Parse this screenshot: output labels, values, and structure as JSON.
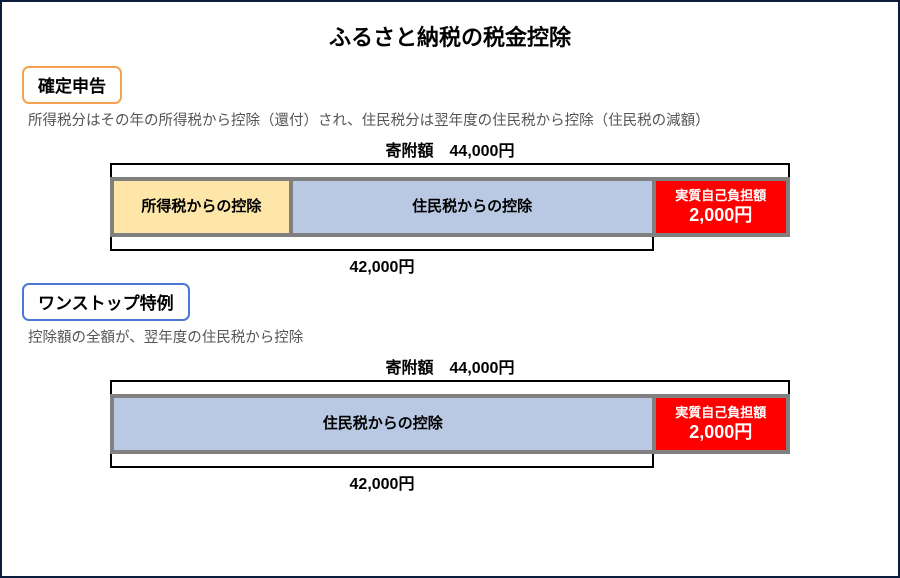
{
  "title": "ふるさと納税の税金控除",
  "colors": {
    "frame": "#0a1d3d",
    "bar_border": "#808080",
    "seg_yellow": "#fde6a8",
    "seg_blue": "#b9c9e3",
    "seg_red": "#ff0000",
    "text_black": "#000000",
    "text_white": "#ffffff",
    "text_gray": "#555555",
    "tag_orange": "#f5a34e",
    "tag_blue": "#4a78d4"
  },
  "section1": {
    "tag": "確定申告",
    "desc": "所得税分はその年の所得税から控除（還付）され、住民税分は翌年度の住民税から控除（住民税の減額）",
    "top_label": "寄附額　44,000円",
    "bottom_label": "42,000円",
    "bottom_width_pct": 80,
    "segments": [
      {
        "label1": "所得税からの控除",
        "bg": "#fde6a8",
        "fg": "#000000",
        "width_pct": 26
      },
      {
        "label1": "住民税からの控除",
        "bg": "#b9c9e3",
        "fg": "#000000",
        "width_pct": 54
      },
      {
        "label1": "実質自己負担額",
        "label2": "2,000円",
        "bg": "#ff0000",
        "fg": "#ffffff",
        "width_pct": 20,
        "small": true
      }
    ]
  },
  "section2": {
    "tag": "ワンストップ特例",
    "desc": "控除額の全額が、翌年度の住民税から控除",
    "top_label": "寄附額　44,000円",
    "bottom_label": "42,000円",
    "bottom_width_pct": 80,
    "segments": [
      {
        "label1": "住民税からの控除",
        "bg": "#b9c9e3",
        "fg": "#000000",
        "width_pct": 80
      },
      {
        "label1": "実質自己負担額",
        "label2": "2,000円",
        "bg": "#ff0000",
        "fg": "#ffffff",
        "width_pct": 20,
        "small": true
      }
    ]
  }
}
